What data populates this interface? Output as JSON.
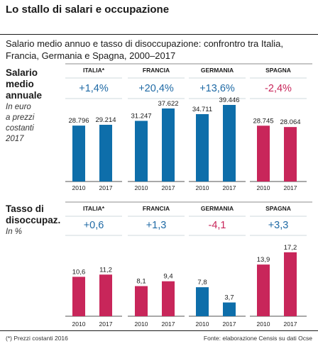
{
  "title": "Lo stallo di salari e occupazione",
  "subtitle": "Salario medio annuo e tasso di disoccupazione: confrontro tra Italia, Francia, Germania e Spagna, 2000–2017",
  "footer": {
    "note": "(*) Prezzi costanti 2016",
    "source": "Fonte: elaborazione Censis su dati Ocse"
  },
  "colors": {
    "blue": "#0e6eaa",
    "red": "#c8265a",
    "change": "#1f6aa5",
    "change_neg": "#c8265a",
    "grid": "#cfd8dd"
  },
  "chart_data": [
    {
      "type": "bar",
      "label": "Salario\nmedio\nannuale",
      "note": "In euro\na prezzi\ncostanti\n2017",
      "groups": [
        "ITALIA*",
        "FRANCIA",
        "GERMANIA",
        "SPAGNA"
      ],
      "x": [
        "2010",
        "2017"
      ],
      "changes": [
        "+1,4%",
        "+20,4%",
        "+13,6%",
        "-2,4%"
      ],
      "values": [
        [
          28796,
          29214
        ],
        [
          31247,
          37622
        ],
        [
          34711,
          39446
        ],
        [
          28745,
          28064
        ]
      ],
      "value_labels": [
        [
          "28.796",
          "29.214"
        ],
        [
          "31.247",
          "37.622"
        ],
        [
          "34.711",
          "39.446"
        ],
        [
          "28.745",
          "28.064"
        ]
      ],
      "bar_colors": [
        "blue",
        "blue",
        "blue",
        "red"
      ],
      "ylim": [
        0,
        42000
      ]
    },
    {
      "type": "bar",
      "label": "Tasso di\ndisoccupaz.",
      "note": "In %",
      "groups": [
        "ITALIA*",
        "FRANCIA",
        "GERMANIA",
        "SPAGNA"
      ],
      "x": [
        "2010",
        "2017"
      ],
      "changes": [
        "+0,6",
        "+1,3",
        "-4,1",
        "+3,3"
      ],
      "values": [
        [
          10.6,
          11.2
        ],
        [
          8.1,
          9.4
        ],
        [
          7.8,
          3.7
        ],
        [
          13.9,
          17.2
        ]
      ],
      "value_labels": [
        [
          "10,6",
          "11,2"
        ],
        [
          "8,1",
          "9,4"
        ],
        [
          "7,8",
          "3,7"
        ],
        [
          "13,9",
          "17,2"
        ]
      ],
      "bar_colors": [
        "red",
        "red",
        "blue",
        "red"
      ],
      "ylim": [
        0,
        18.5
      ]
    }
  ]
}
